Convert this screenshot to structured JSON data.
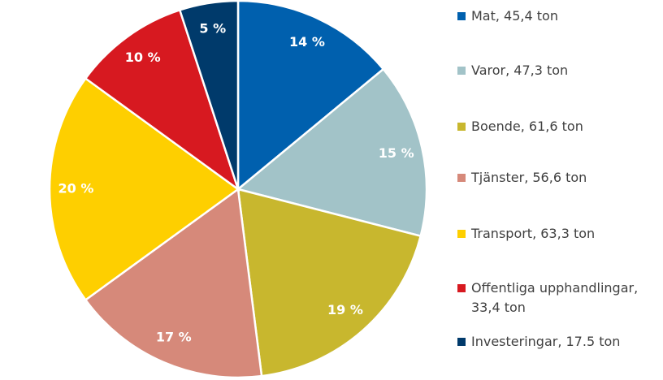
{
  "chart_data": {
    "type": "pie",
    "categories": [
      "Mat, 45,4 ton",
      "Varor, 47,3 ton",
      "Boende, 61,6 ton",
      "Tjänster, 56,6 ton",
      "Transport, 63,3 ton",
      "Offentliga upphandlingar, 33,4 ton",
      "Investeringar, 17.5 ton"
    ],
    "values": [
      14,
      15,
      19,
      17,
      20,
      10,
      5
    ],
    "value_labels": [
      "14 %",
      "15 %",
      "19 %",
      "17 %",
      "20 %",
      "10 %",
      "5 %"
    ],
    "colors": [
      "#0060ae",
      "#a2c3c8",
      "#c8b72e",
      "#d6897a",
      "#fecf00",
      "#d71920",
      "#003a6b"
    ],
    "legend": "right"
  }
}
